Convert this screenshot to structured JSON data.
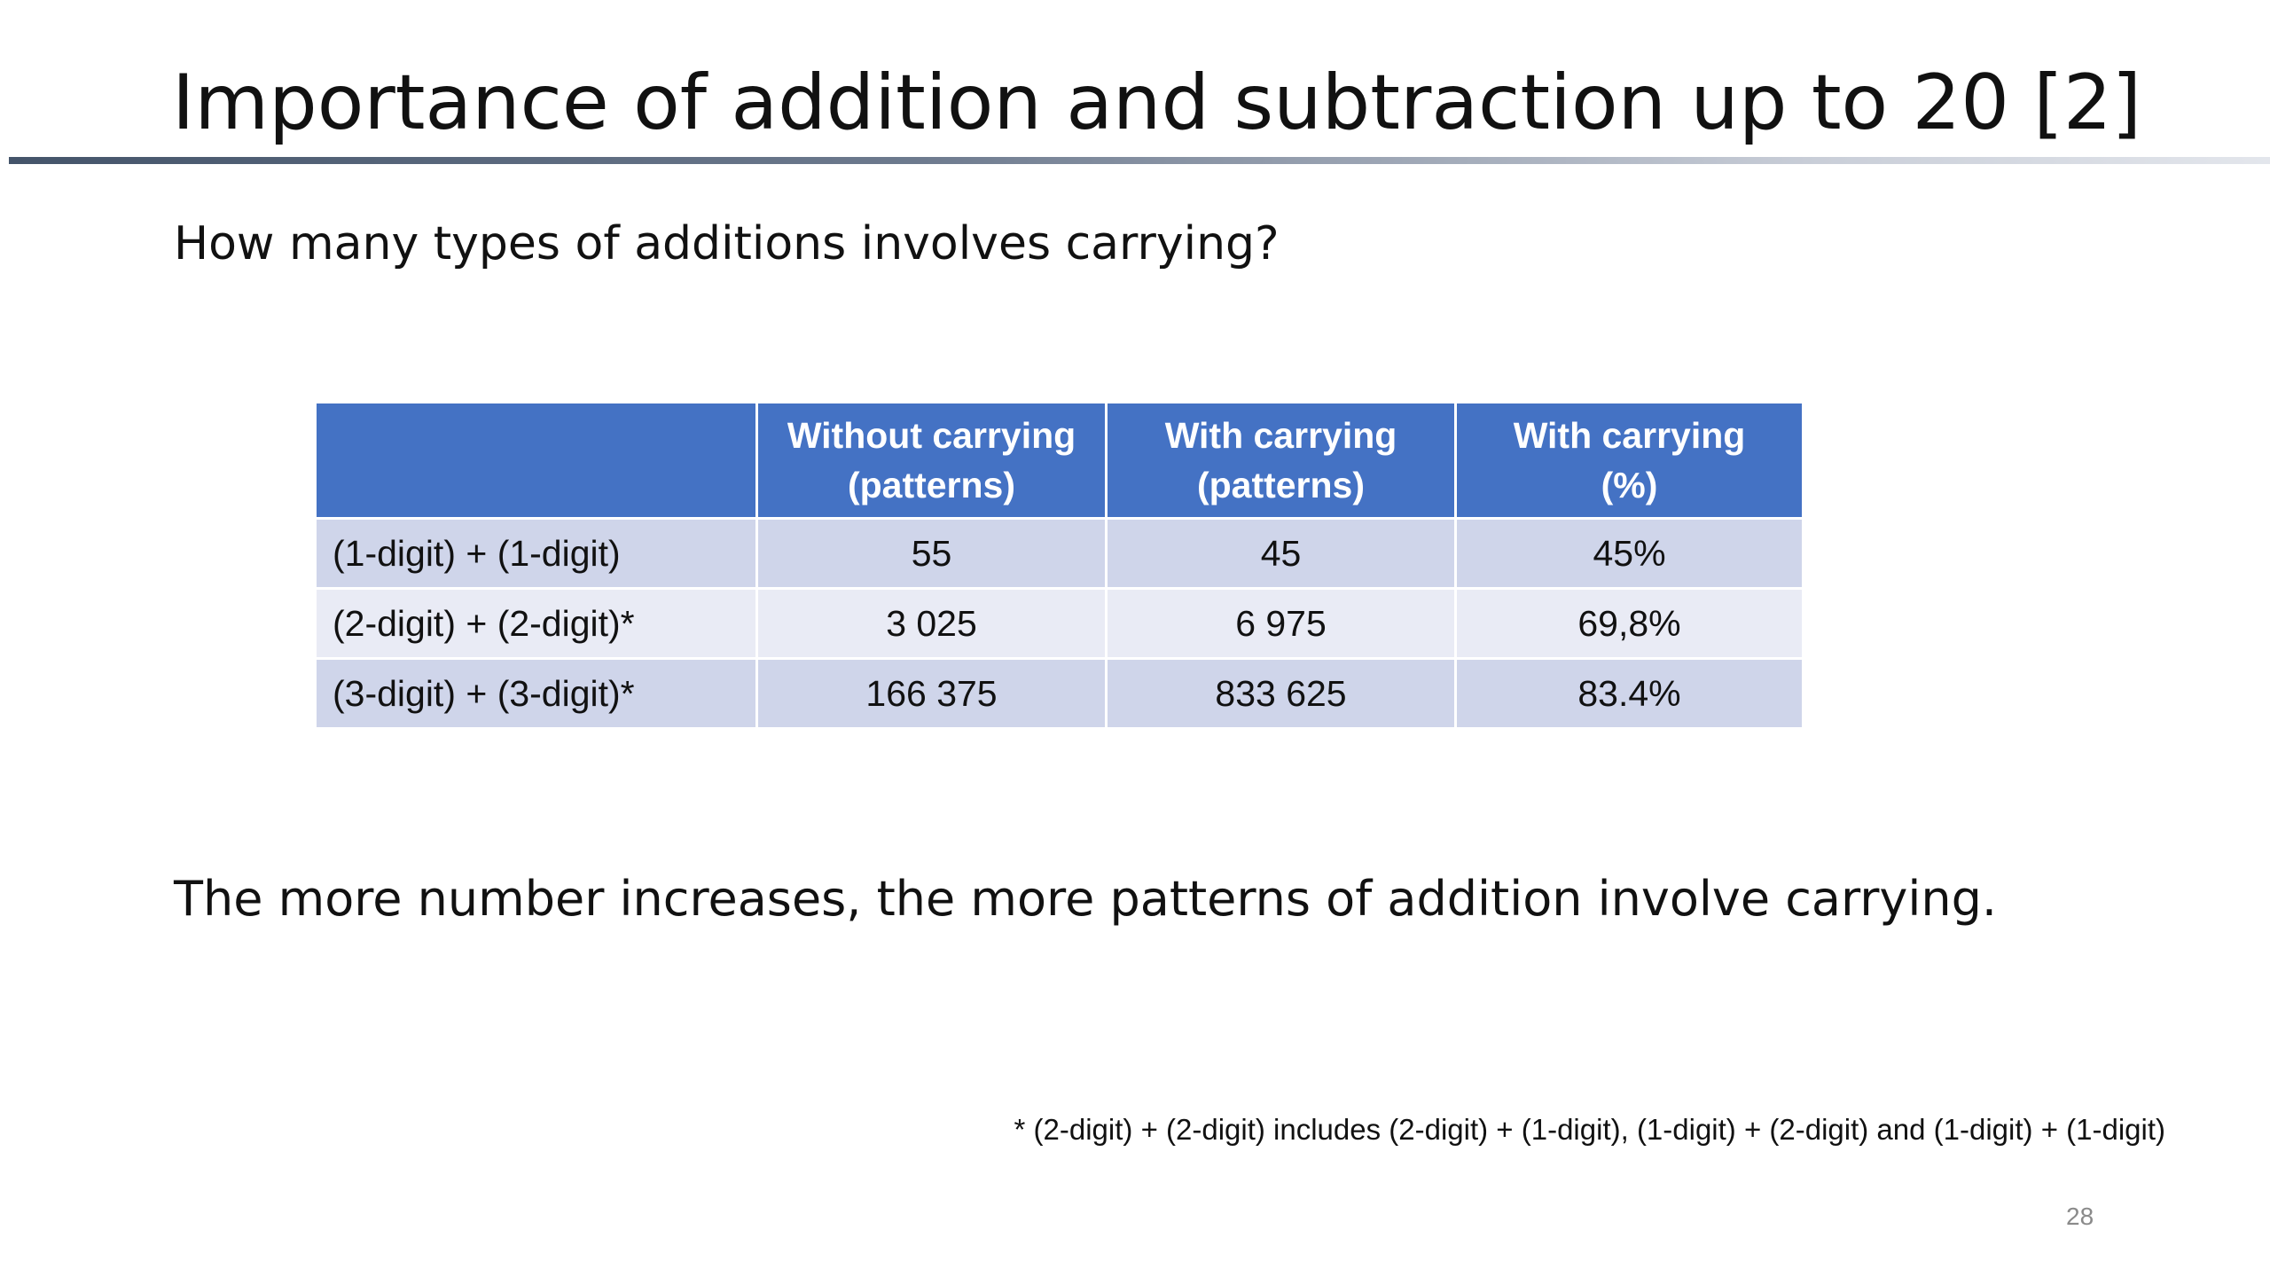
{
  "header": {
    "title": "Importance of addition and subtraction up to 20 [2]"
  },
  "question": "How many types of additions involves carrying?",
  "table": {
    "columns": [
      "",
      "Without carrying\n(patterns)",
      "With carrying\n(patterns)",
      "With carrying\n(%)"
    ],
    "rows": [
      [
        "(1-digit) + (1-digit)",
        "55",
        "45",
        "45%"
      ],
      [
        "(2-digit) + (2-digit)*",
        "3 025",
        "6 975",
        "69,8%"
      ],
      [
        "(3-digit) + (3-digit)*",
        "166 375",
        "833 625",
        "83.4%"
      ]
    ]
  },
  "conclusion": "The more number increases, the more patterns of addition involve carrying.",
  "footnote": "* (2-digit) + (2-digit) includes (2-digit) + (1-digit), (1-digit) + (2-digit) and (1-digit) + (1-digit)",
  "page_number": "28"
}
